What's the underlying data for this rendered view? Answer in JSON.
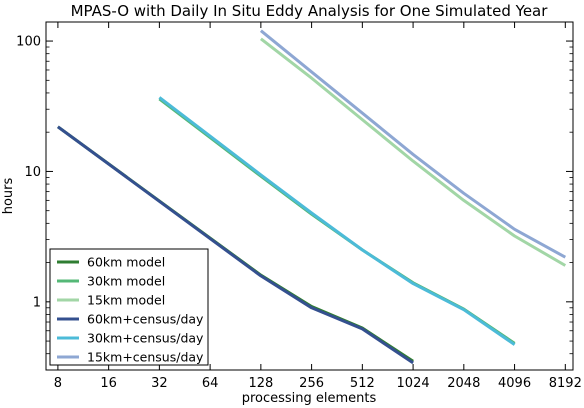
{
  "chart_data": {
    "type": "line",
    "title": "MPAS-O with Daily In Situ Eddy Analysis for One Simulated Year",
    "xlabel": "processing elements",
    "ylabel": "hours",
    "xscale": "log2",
    "yscale": "log10",
    "xlim": [
      6.8,
      9100
    ],
    "ylim": [
      0.3,
      140
    ],
    "xticks": [
      8,
      16,
      32,
      64,
      128,
      256,
      512,
      1024,
      2048,
      4096,
      8192
    ],
    "xtick_labels": [
      "8",
      "16",
      "32",
      "64",
      "128",
      "256",
      "512",
      "1024",
      "2048",
      "4096",
      "8192"
    ],
    "yticks": [
      1,
      10,
      100
    ],
    "ytick_labels": [
      "1",
      "10",
      "100"
    ],
    "grid": false,
    "legend_position": "lower-left",
    "series": [
      {
        "name": "60km model",
        "color": "#2f7d32",
        "x": [
          8,
          128,
          256,
          512,
          1024
        ],
        "y": [
          22,
          1.6,
          0.92,
          0.63,
          0.35
        ]
      },
      {
        "name": "30km model",
        "color": "#55b877",
        "x": [
          32,
          128,
          256,
          512,
          1024,
          2048,
          4096
        ],
        "y": [
          36,
          9.2,
          4.7,
          2.5,
          1.4,
          0.88,
          0.48
        ]
      },
      {
        "name": "15km model",
        "color": "#a2d6a6",
        "x": [
          128,
          256,
          512,
          1024,
          2048,
          4096,
          8192
        ],
        "y": [
          104,
          52,
          25,
          12,
          6.0,
          3.2,
          1.9
        ]
      },
      {
        "name": "60km+census/day",
        "color": "#34508f",
        "x": [
          8,
          128,
          256,
          512,
          1024
        ],
        "y": [
          22,
          1.58,
          0.9,
          0.62,
          0.34
        ]
      },
      {
        "name": "30km+census/day",
        "color": "#4cbbd8",
        "x": [
          32,
          128,
          256,
          512,
          1024,
          2048,
          4096
        ],
        "y": [
          37,
          9.4,
          4.8,
          2.5,
          1.38,
          0.87,
          0.47
        ]
      },
      {
        "name": "15km+census/day",
        "color": "#8ea7d3",
        "x": [
          128,
          256,
          512,
          1024,
          2048,
          4096,
          8192
        ],
        "y": [
          120,
          58,
          28,
          13.5,
          6.8,
          3.6,
          2.2
        ]
      }
    ]
  }
}
